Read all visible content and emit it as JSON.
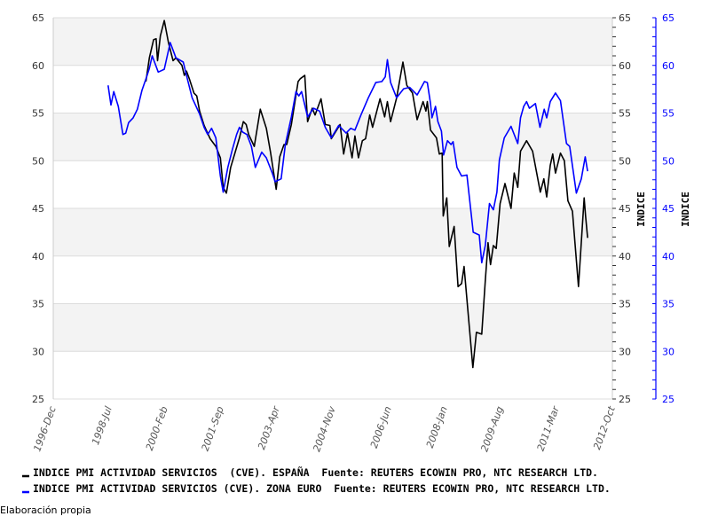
{
  "chart_data": {
    "type": "line",
    "title": "",
    "xlabel": "",
    "ylabel": "INDICE",
    "y2label": "INDICE",
    "ylim": [
      25,
      65
    ],
    "y2lim": [
      25,
      65
    ],
    "yticks": [
      25,
      30,
      35,
      40,
      45,
      50,
      55,
      60,
      65
    ],
    "xlim": [
      1996.917,
      2012.75
    ],
    "xtick_labels": [
      "1996-Dec",
      "1998-Jul",
      "2000-Feb",
      "2001-Sep",
      "2003-Apr",
      "2004-Nov",
      "2006-Jun",
      "2008-Jan",
      "2009-Aug",
      "2011-Mar",
      "2012-Oct"
    ],
    "grid": true,
    "legend_position": "bottom",
    "series": [
      {
        "name": "INDICE PMI ACTIVIDAD SERVICIOS  (CVE). ESPAÑA  Fuente: REUTERS ECOWIN PRO, NTC RESEARCH LTD.",
        "color": "#000000",
        "axis": "left",
        "points": [
          [
            1999.54,
            58.3
          ],
          [
            1999.64,
            60.8
          ],
          [
            1999.76,
            62.7
          ],
          [
            1999.83,
            62.8
          ],
          [
            1999.87,
            60.5
          ],
          [
            1999.95,
            63.1
          ],
          [
            2000.06,
            64.7
          ],
          [
            2000.18,
            62.4
          ],
          [
            2000.31,
            60.5
          ],
          [
            2000.39,
            60.8
          ],
          [
            2000.56,
            60.0
          ],
          [
            2000.63,
            58.95
          ],
          [
            2000.69,
            59.4
          ],
          [
            2000.77,
            58.6
          ],
          [
            2000.9,
            57.1
          ],
          [
            2000.98,
            56.8
          ],
          [
            2001.06,
            55.2
          ],
          [
            2001.19,
            53.7
          ],
          [
            2001.36,
            52.3
          ],
          [
            2001.52,
            51.5
          ],
          [
            2001.65,
            50.3
          ],
          [
            2001.73,
            47.2
          ],
          [
            2001.82,
            46.6
          ],
          [
            2001.94,
            49.3
          ],
          [
            2002.07,
            50.9
          ],
          [
            2002.19,
            52.4
          ],
          [
            2002.3,
            54.1
          ],
          [
            2002.38,
            53.8
          ],
          [
            2002.45,
            52.75
          ],
          [
            2002.61,
            51.5
          ],
          [
            2002.78,
            55.4
          ],
          [
            2002.95,
            53.4
          ],
          [
            2003.07,
            50.9
          ],
          [
            2003.23,
            47.0
          ],
          [
            2003.33,
            50.4
          ],
          [
            2003.45,
            51.7
          ],
          [
            2003.53,
            51.7
          ],
          [
            2003.66,
            53.8
          ],
          [
            2003.85,
            58.3
          ],
          [
            2003.91,
            58.6
          ],
          [
            2004.04,
            58.95
          ],
          [
            2004.12,
            54.1
          ],
          [
            2004.25,
            55.5
          ],
          [
            2004.33,
            54.8
          ],
          [
            2004.5,
            56.5
          ],
          [
            2004.62,
            53.8
          ],
          [
            2004.75,
            53.7
          ],
          [
            2004.79,
            52.3
          ],
          [
            2005.04,
            53.8
          ],
          [
            2005.14,
            50.7
          ],
          [
            2005.25,
            52.9
          ],
          [
            2005.38,
            50.3
          ],
          [
            2005.46,
            52.6
          ],
          [
            2005.56,
            50.3
          ],
          [
            2005.67,
            52.1
          ],
          [
            2005.76,
            52.3
          ],
          [
            2005.88,
            54.8
          ],
          [
            2005.96,
            53.5
          ],
          [
            2006.17,
            56.5
          ],
          [
            2006.3,
            54.6
          ],
          [
            2006.38,
            56.2
          ],
          [
            2006.47,
            54.1
          ],
          [
            2006.64,
            56.6
          ],
          [
            2006.82,
            60.35
          ],
          [
            2006.93,
            57.9
          ],
          [
            2007.09,
            57.1
          ],
          [
            2007.22,
            54.3
          ],
          [
            2007.39,
            56.2
          ],
          [
            2007.47,
            55.2
          ],
          [
            2007.51,
            56.2
          ],
          [
            2007.6,
            53.2
          ],
          [
            2007.77,
            52.4
          ],
          [
            2007.85,
            50.7
          ],
          [
            2007.93,
            50.8
          ],
          [
            2007.96,
            44.2
          ],
          [
            2008.06,
            46.1
          ],
          [
            2008.13,
            41.0
          ],
          [
            2008.27,
            43.1
          ],
          [
            2008.38,
            36.8
          ],
          [
            2008.48,
            37.1
          ],
          [
            2008.55,
            38.9
          ],
          [
            2008.65,
            34.6
          ],
          [
            2008.8,
            28.3
          ],
          [
            2008.9,
            32.0
          ],
          [
            2009.05,
            31.8
          ],
          [
            2009.15,
            37.4
          ],
          [
            2009.23,
            41.4
          ],
          [
            2009.3,
            39.1
          ],
          [
            2009.38,
            41.1
          ],
          [
            2009.46,
            40.8
          ],
          [
            2009.57,
            45.5
          ],
          [
            2009.71,
            47.6
          ],
          [
            2009.88,
            45.0
          ],
          [
            2009.97,
            48.7
          ],
          [
            2010.07,
            47.2
          ],
          [
            2010.15,
            51.0
          ],
          [
            2010.32,
            52.1
          ],
          [
            2010.49,
            51.0
          ],
          [
            2010.71,
            46.7
          ],
          [
            2010.81,
            48.1
          ],
          [
            2010.89,
            46.2
          ],
          [
            2010.99,
            49.5
          ],
          [
            2011.06,
            50.7
          ],
          [
            2011.14,
            48.7
          ],
          [
            2011.28,
            50.8
          ],
          [
            2011.39,
            50.0
          ],
          [
            2011.49,
            45.8
          ],
          [
            2011.62,
            44.7
          ],
          [
            2011.79,
            36.8
          ],
          [
            2011.95,
            46.1
          ],
          [
            2011.99,
            44.2
          ],
          [
            2012.05,
            41.9
          ]
        ]
      },
      {
        "name": "INDICE PMI ACTIVIDAD SERVICIOS (CVE). ZONA EURO  Fuente: REUTERS ECOWIN PRO, NTC RESEARCH LTD.",
        "color": "#0000ff",
        "axis": "right",
        "points": [
          [
            1998.47,
            57.9
          ],
          [
            1998.55,
            55.85
          ],
          [
            1998.63,
            57.25
          ],
          [
            1998.76,
            55.7
          ],
          [
            1998.89,
            52.75
          ],
          [
            1998.97,
            52.9
          ],
          [
            1999.05,
            54.0
          ],
          [
            1999.18,
            54.5
          ],
          [
            1999.3,
            55.4
          ],
          [
            1999.43,
            57.4
          ],
          [
            1999.56,
            58.8
          ],
          [
            1999.64,
            59.7
          ],
          [
            1999.72,
            61.0
          ],
          [
            1999.89,
            59.3
          ],
          [
            2000.06,
            59.6
          ],
          [
            2000.23,
            62.4
          ],
          [
            2000.39,
            60.8
          ],
          [
            2000.6,
            60.35
          ],
          [
            2000.69,
            58.95
          ],
          [
            2000.85,
            56.6
          ],
          [
            2001.06,
            54.9
          ],
          [
            2001.19,
            53.5
          ],
          [
            2001.29,
            52.75
          ],
          [
            2001.4,
            53.4
          ],
          [
            2001.52,
            52.4
          ],
          [
            2001.65,
            48.4
          ],
          [
            2001.73,
            46.7
          ],
          [
            2001.86,
            49.3
          ],
          [
            2001.99,
            51.2
          ],
          [
            2002.11,
            52.75
          ],
          [
            2002.19,
            53.5
          ],
          [
            2002.28,
            53.0
          ],
          [
            2002.4,
            52.75
          ],
          [
            2002.53,
            51.5
          ],
          [
            2002.64,
            49.3
          ],
          [
            2002.82,
            50.9
          ],
          [
            2002.95,
            50.3
          ],
          [
            2003.12,
            48.7
          ],
          [
            2003.2,
            47.8
          ],
          [
            2003.37,
            48.1
          ],
          [
            2003.49,
            51.7
          ],
          [
            2003.66,
            54.6
          ],
          [
            2003.79,
            57.25
          ],
          [
            2003.87,
            56.8
          ],
          [
            2003.95,
            57.25
          ],
          [
            2004.12,
            54.6
          ],
          [
            2004.29,
            55.5
          ],
          [
            2004.46,
            55.2
          ],
          [
            2004.62,
            53.5
          ],
          [
            2004.79,
            52.4
          ],
          [
            2005.0,
            53.7
          ],
          [
            2005.21,
            52.9
          ],
          [
            2005.34,
            53.4
          ],
          [
            2005.46,
            53.2
          ],
          [
            2005.63,
            54.8
          ],
          [
            2005.84,
            56.6
          ],
          [
            2006.05,
            58.2
          ],
          [
            2006.22,
            58.3
          ],
          [
            2006.32,
            58.8
          ],
          [
            2006.38,
            60.6
          ],
          [
            2006.47,
            58.2
          ],
          [
            2006.64,
            56.6
          ],
          [
            2006.84,
            57.55
          ],
          [
            2007.01,
            57.7
          ],
          [
            2007.22,
            56.9
          ],
          [
            2007.43,
            58.3
          ],
          [
            2007.51,
            58.2
          ],
          [
            2007.6,
            56.0
          ],
          [
            2007.64,
            54.5
          ],
          [
            2007.74,
            55.7
          ],
          [
            2007.81,
            54.1
          ],
          [
            2007.91,
            53.1
          ],
          [
            2007.97,
            50.6
          ],
          [
            2008.08,
            52.1
          ],
          [
            2008.18,
            51.7
          ],
          [
            2008.24,
            52.0
          ],
          [
            2008.35,
            49.3
          ],
          [
            2008.48,
            48.4
          ],
          [
            2008.63,
            48.5
          ],
          [
            2008.73,
            45.2
          ],
          [
            2008.81,
            42.5
          ],
          [
            2008.98,
            42.2
          ],
          [
            2009.05,
            39.3
          ],
          [
            2009.15,
            41.1
          ],
          [
            2009.27,
            45.5
          ],
          [
            2009.38,
            44.85
          ],
          [
            2009.48,
            46.7
          ],
          [
            2009.55,
            50.1
          ],
          [
            2009.69,
            52.4
          ],
          [
            2009.88,
            53.6
          ],
          [
            2010.07,
            51.8
          ],
          [
            2010.15,
            54.5
          ],
          [
            2010.24,
            55.7
          ],
          [
            2010.32,
            56.2
          ],
          [
            2010.4,
            55.5
          ],
          [
            2010.57,
            56.0
          ],
          [
            2010.7,
            53.5
          ],
          [
            2010.82,
            55.4
          ],
          [
            2010.89,
            54.5
          ],
          [
            2010.99,
            56.2
          ],
          [
            2011.14,
            57.1
          ],
          [
            2011.28,
            56.3
          ],
          [
            2011.45,
            51.8
          ],
          [
            2011.54,
            51.5
          ],
          [
            2011.73,
            46.6
          ],
          [
            2011.87,
            48.1
          ],
          [
            2011.98,
            50.4
          ],
          [
            2012.05,
            48.9
          ]
        ]
      }
    ],
    "footnote": "Elaboración propia"
  }
}
